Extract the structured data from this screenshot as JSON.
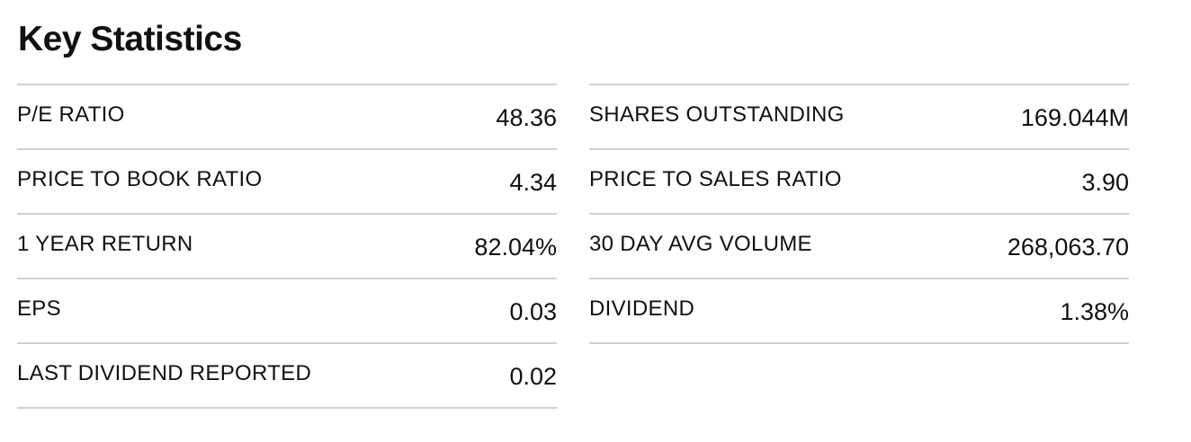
{
  "title": "Key Statistics",
  "columns": [
    [
      {
        "label": "P/E RATIO",
        "value": "48.36"
      },
      {
        "label": "PRICE TO BOOK RATIO",
        "value": "4.34"
      },
      {
        "label": "1 YEAR RETURN",
        "value": "82.04%"
      },
      {
        "label": "EPS",
        "value": "0.03"
      },
      {
        "label": "LAST DIVIDEND REPORTED",
        "value": "0.02"
      }
    ],
    [
      {
        "label": "SHARES OUTSTANDING",
        "value": "169.044M"
      },
      {
        "label": "PRICE TO SALES RATIO",
        "value": "3.90"
      },
      {
        "label": "30 DAY AVG VOLUME",
        "value": "268,063.70"
      },
      {
        "label": "DIVIDEND",
        "value": "1.38%"
      }
    ]
  ]
}
